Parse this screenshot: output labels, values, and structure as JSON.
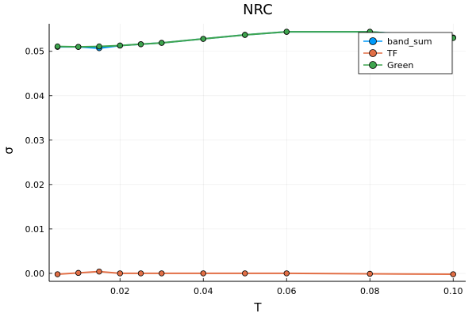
{
  "chart_data": {
    "type": "line",
    "title": "NRC",
    "xlabel": "T",
    "ylabel": "σ",
    "xlim": [
      0.003,
      0.103
    ],
    "ylim": [
      -0.0018,
      0.0562
    ],
    "xticks": [
      0.02,
      0.04,
      0.06,
      0.08,
      0.1
    ],
    "xtick_labels": [
      "0.02",
      "0.04",
      "0.06",
      "0.08",
      "0.10"
    ],
    "yticks": [
      0.0,
      0.01,
      0.02,
      0.03,
      0.04,
      0.05
    ],
    "ytick_labels": [
      "0.00",
      "0.01",
      "0.02",
      "0.03",
      "0.04",
      "0.05"
    ],
    "grid": true,
    "legend_position": "top-right",
    "x": [
      0.005,
      0.01,
      0.015,
      0.02,
      0.025,
      0.03,
      0.04,
      0.05,
      0.06,
      0.08,
      0.1
    ],
    "series": [
      {
        "name": "band_sum",
        "color": "#009AFA",
        "values": [
          0.051,
          0.051,
          0.0507,
          0.0513,
          0.0516,
          0.0519,
          0.0528,
          0.0537,
          0.0544,
          0.0544,
          0.0531
        ]
      },
      {
        "name": "TF",
        "color": "#E26F46",
        "values": [
          -0.0002,
          0.0001,
          0.0004,
          0.0,
          0.0,
          0.0,
          0.0,
          0.0,
          0.0,
          -0.0001,
          -0.0002
        ]
      },
      {
        "name": "Green",
        "color": "#3EA44E",
        "values": [
          0.0511,
          0.051,
          0.0511,
          0.0513,
          0.0516,
          0.0519,
          0.0528,
          0.0537,
          0.0544,
          0.0544,
          0.053
        ]
      }
    ]
  }
}
